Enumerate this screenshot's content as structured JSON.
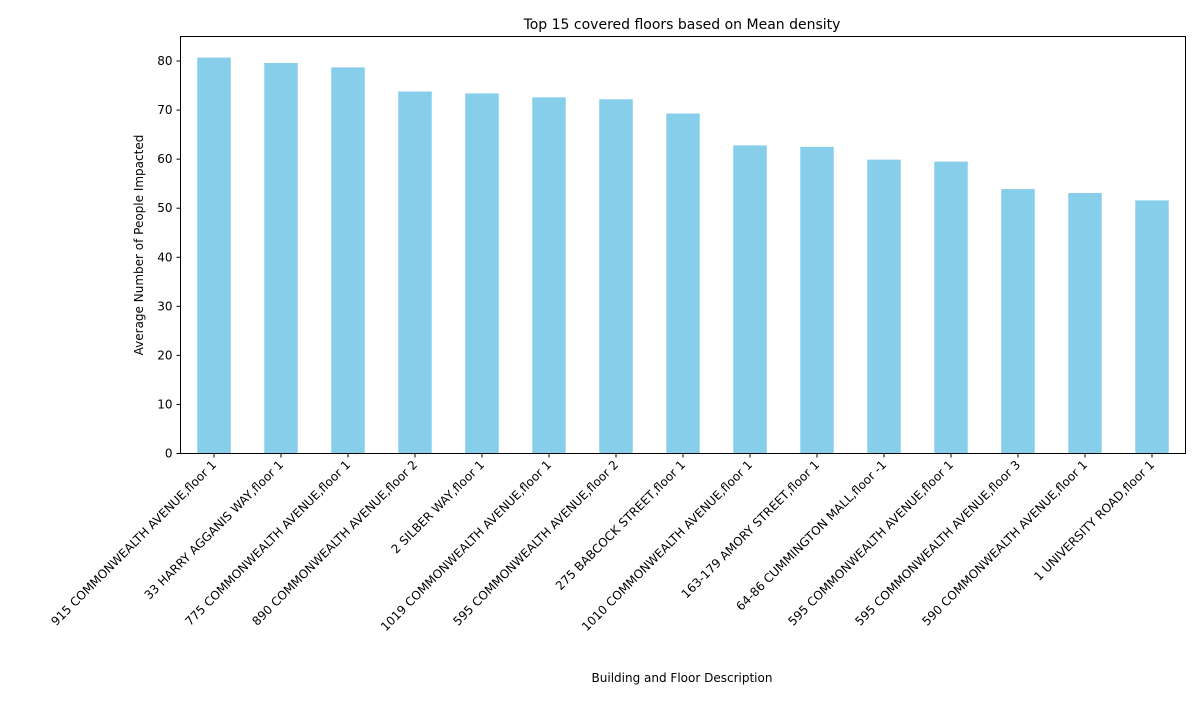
{
  "chart_data": {
    "type": "bar",
    "title": "Top 15 covered floors based on Mean density",
    "xlabel": "Building and Floor Description",
    "ylabel": "Average Number of People Impacted",
    "ylim": [
      0,
      85
    ],
    "yticks": [
      0,
      10,
      20,
      30,
      40,
      50,
      60,
      70,
      80
    ],
    "grid": false,
    "legend": "none",
    "bar_color": "#87CEEB",
    "categories": [
      "915 COMMONWEALTH AVENUE,floor 1",
      "33 HARRY AGGANIS WAY,floor 1",
      "775 COMMONWEALTH AVENUE,floor 1",
      "890 COMMONWEALTH AVENUE,floor 2",
      "2 SILBER WAY,floor 1",
      "1019 COMMONWEALTH AVENUE,floor 1",
      "595 COMMONWEALTH AVENUE,floor 2",
      "275 BABCOCK STREET,floor 1",
      "1010 COMMONWEALTH AVENUE,floor 1",
      "163-179 AMORY STREET,floor 1",
      "64-86 CUMMINGTON MALL,floor -1",
      "595 COMMONWEALTH AVENUE,floor 1",
      "595 COMMONWEALTH AVENUE,floor 3",
      "590 COMMONWEALTH AVENUE,floor 1",
      "1 UNIVERSITY ROAD,floor 1"
    ],
    "values": [
      80.7,
      79.6,
      78.7,
      73.8,
      73.4,
      72.6,
      72.2,
      69.3,
      62.8,
      62.5,
      59.9,
      59.5,
      53.9,
      53.1,
      51.6
    ]
  }
}
